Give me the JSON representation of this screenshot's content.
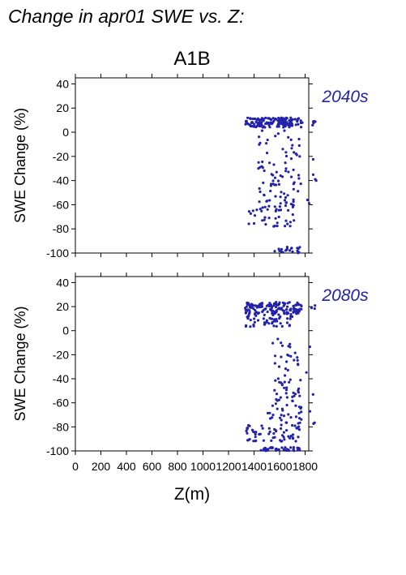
{
  "title": "Change in apr01 SWE vs. Z:",
  "scenario": "A1B",
  "xlabel": "Z(m)",
  "ylabel": "SWE Change (%)",
  "point_color": "#2222aa",
  "chart_data": [
    {
      "type": "scatter",
      "period": "2040s",
      "xlim": [
        0,
        900
      ],
      "ylim": [
        -100,
        45
      ],
      "xticks": [
        "0",
        "200",
        "400",
        "600",
        "800",
        "1000",
        "1200",
        "1400",
        "1600",
        "1800"
      ],
      "yticks": [
        "40",
        "20",
        "0",
        "-20",
        "-40",
        "-60",
        "-80",
        "-100"
      ],
      "ytick_values": [
        40,
        20,
        0,
        -20,
        -40,
        -60,
        -80,
        -100
      ],
      "xtick_values": [
        0,
        200,
        400,
        600,
        800,
        1000,
        1200,
        1400,
        1600,
        1800
      ],
      "clusters": [
        {
          "x": [
            1330,
            1780
          ],
          "y": [
            4,
            12
          ],
          "n": 150
        },
        {
          "x": [
            1850,
            1880
          ],
          "y": [
            4,
            11
          ],
          "n": 5
        },
        {
          "x": [
            1430,
            1760
          ],
          "y": [
            -35,
            2
          ],
          "n": 40
        },
        {
          "x": [
            1420,
            1780
          ],
          "y": [
            -50,
            -35
          ],
          "n": 25
        },
        {
          "x": [
            1440,
            1720
          ],
          "y": [
            -62,
            -50
          ],
          "n": 25
        },
        {
          "x": [
            1330,
            1750
          ],
          "y": [
            -78,
            -62
          ],
          "n": 35
        },
        {
          "x": [
            1560,
            1760
          ],
          "y": [
            -100,
            -95
          ],
          "n": 20
        },
        {
          "x": [
            1800,
            1890
          ],
          "y": [
            -75,
            -20
          ],
          "n": 6
        }
      ]
    },
    {
      "type": "scatter",
      "period": "2080s",
      "xlim": [
        0,
        900
      ],
      "ylim": [
        -100,
        45
      ],
      "xticks": [
        "0",
        "200",
        "400",
        "600",
        "800",
        "1000",
        "1200",
        "1400",
        "1600",
        "1800"
      ],
      "yticks": [
        "40",
        "20",
        "0",
        "-20",
        "-40",
        "-60",
        "-80",
        "-100"
      ],
      "ytick_values": [
        40,
        20,
        0,
        -20,
        -40,
        -60,
        -80,
        -100
      ],
      "xtick_values": [
        0,
        200,
        400,
        600,
        800,
        1000,
        1200,
        1400,
        1600,
        1800
      ],
      "clusters": [
        {
          "x": [
            1330,
            1780
          ],
          "y": [
            14,
            24
          ],
          "n": 130
        },
        {
          "x": [
            1330,
            1700
          ],
          "y": [
            3,
            14
          ],
          "n": 50
        },
        {
          "x": [
            1850,
            1880
          ],
          "y": [
            15,
            22
          ],
          "n": 4
        },
        {
          "x": [
            1540,
            1760
          ],
          "y": [
            -40,
            -5
          ],
          "n": 25
        },
        {
          "x": [
            1560,
            1770
          ],
          "y": [
            -60,
            -40
          ],
          "n": 30
        },
        {
          "x": [
            1500,
            1780
          ],
          "y": [
            -78,
            -60
          ],
          "n": 30
        },
        {
          "x": [
            1330,
            1780
          ],
          "y": [
            -92,
            -78
          ],
          "n": 60
        },
        {
          "x": [
            1450,
            1760
          ],
          "y": [
            -100,
            -97
          ],
          "n": 40
        },
        {
          "x": [
            1800,
            1890
          ],
          "y": [
            -82,
            -5
          ],
          "n": 6
        }
      ]
    }
  ]
}
